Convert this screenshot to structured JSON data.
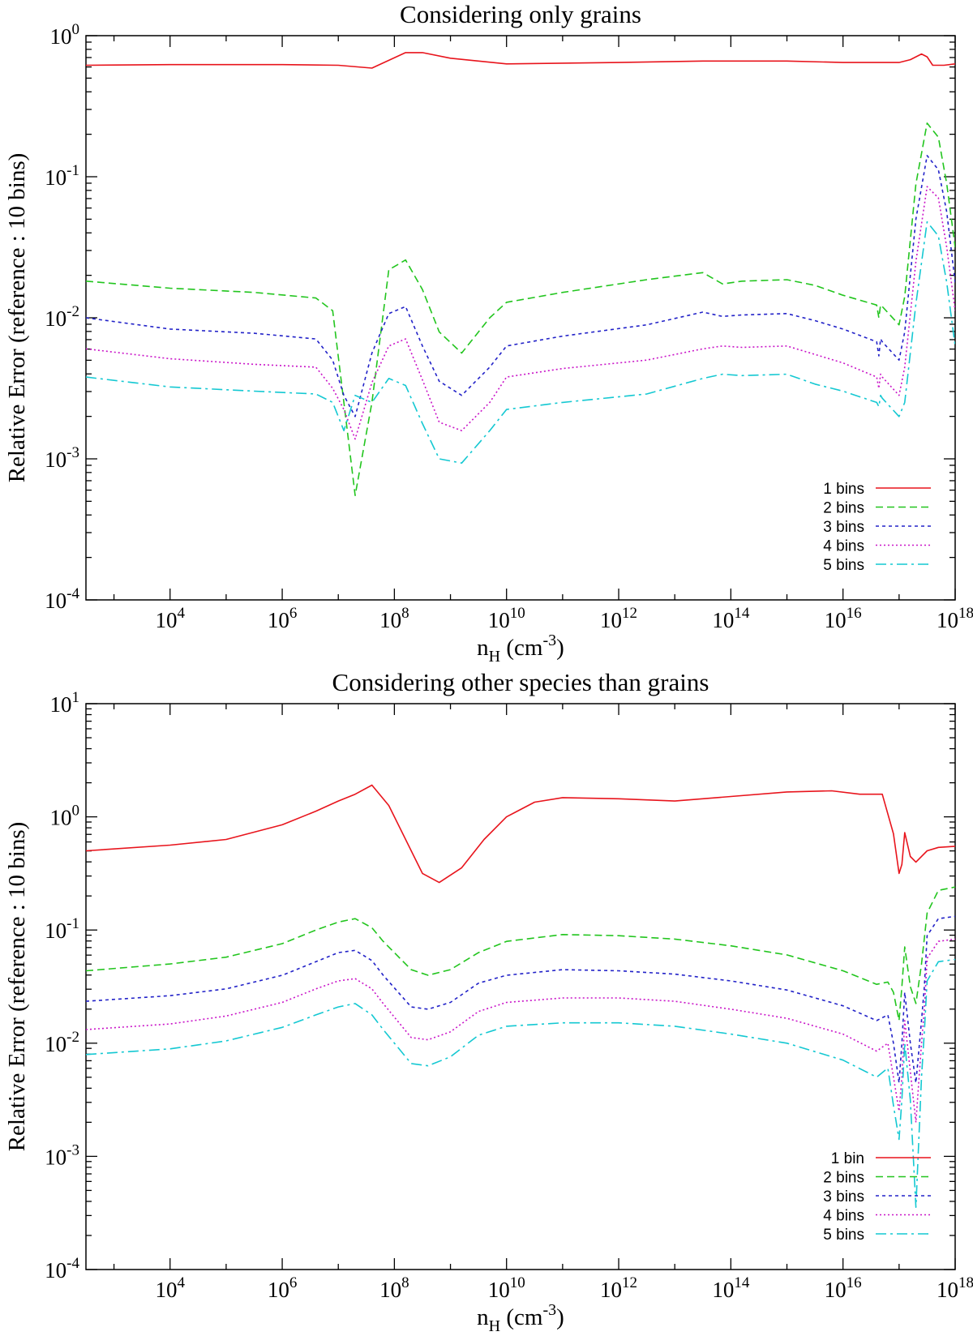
{
  "chart_data": [
    {
      "type": "line",
      "title": "Considering only grains",
      "xlabel": {
        "base": "n",
        "sub": "H",
        "unit_open": " (cm",
        "unit_exp": "-3",
        "unit_close": ")"
      },
      "ylabel": "Relative Error (reference : 10 bins)",
      "xscale": "log10",
      "yscale": "log10",
      "xlim": [
        2.5,
        18.0
      ],
      "ylim": [
        -4,
        0
      ],
      "x_ticks": [
        {
          "base": "10",
          "exp": "4",
          "value": 4
        },
        {
          "base": "10",
          "exp": "6",
          "value": 6
        },
        {
          "base": "10",
          "exp": "8",
          "value": 8
        },
        {
          "base": "10",
          "exp": "10",
          "value": 10
        },
        {
          "base": "10",
          "exp": "12",
          "value": 12
        },
        {
          "base": "10",
          "exp": "14",
          "value": 14
        },
        {
          "base": "10",
          "exp": "16",
          "value": 16
        },
        {
          "base": "10",
          "exp": "18",
          "value": 18
        }
      ],
      "y_ticks": [
        {
          "base": "10",
          "exp": "-4",
          "value": -4
        },
        {
          "base": "10",
          "exp": "-3",
          "value": -3
        },
        {
          "base": "10",
          "exp": "-2",
          "value": -2
        },
        {
          "base": "10",
          "exp": "-1",
          "value": -1
        },
        {
          "base": "10",
          "exp": "0",
          "value": 0
        }
      ],
      "legend_position": "bottom-right",
      "series": [
        {
          "name": "1 bins",
          "color": "#e8141c",
          "dash": "solid",
          "log_x": [
            2.5,
            4.0,
            6.0,
            7.0,
            7.6,
            8.2,
            8.5,
            9.0,
            10.0,
            12.0,
            13.5,
            15.0,
            16.0,
            17.0,
            17.2,
            17.4,
            17.5,
            17.6,
            17.8,
            18.0
          ],
          "log_y": [
            -0.21,
            -0.205,
            -0.205,
            -0.21,
            -0.23,
            -0.12,
            -0.12,
            -0.16,
            -0.2,
            -0.19,
            -0.18,
            -0.18,
            -0.19,
            -0.19,
            -0.17,
            -0.13,
            -0.15,
            -0.21,
            -0.21,
            -0.2
          ]
        },
        {
          "name": "2 bins",
          "color": "#22c51e",
          "dash": "dashed",
          "log_x": [
            2.5,
            4.0,
            5.5,
            6.6,
            6.9,
            7.1,
            7.3,
            7.6,
            7.9,
            8.2,
            8.5,
            8.8,
            9.2,
            9.7,
            10.0,
            11.0,
            12.5,
            13.5,
            13.85,
            14.2,
            15.0,
            15.5,
            16.0,
            16.6,
            16.64,
            16.67,
            16.7,
            17.0,
            17.1,
            17.3,
            17.5,
            17.7,
            17.85,
            18.0
          ],
          "log_y": [
            -1.74,
            -1.79,
            -1.82,
            -1.86,
            -1.95,
            -2.6,
            -3.26,
            -2.6,
            -1.66,
            -1.59,
            -1.8,
            -2.1,
            -2.25,
            -2.0,
            -1.89,
            -1.82,
            -1.73,
            -1.68,
            -1.76,
            -1.74,
            -1.73,
            -1.77,
            -1.84,
            -1.91,
            -2.0,
            -1.91,
            -1.92,
            -2.05,
            -1.85,
            -1.05,
            -0.62,
            -0.72,
            -1.05,
            -1.5
          ]
        },
        {
          "name": "3 bins",
          "color": "#2222c8",
          "dash": "dotted",
          "log_x": [
            2.5,
            4.0,
            5.5,
            6.6,
            6.9,
            7.1,
            7.3,
            7.6,
            7.9,
            8.2,
            8.5,
            8.8,
            9.2,
            9.7,
            10.0,
            11.0,
            12.5,
            13.5,
            13.85,
            14.2,
            15.0,
            15.5,
            16.0,
            16.6,
            16.64,
            16.67,
            16.7,
            17.0,
            17.1,
            17.3,
            17.5,
            17.7,
            17.85,
            18.0
          ],
          "log_y": [
            -2.0,
            -2.08,
            -2.11,
            -2.15,
            -2.3,
            -2.55,
            -2.7,
            -2.25,
            -1.97,
            -1.92,
            -2.2,
            -2.45,
            -2.55,
            -2.35,
            -2.2,
            -2.13,
            -2.05,
            -1.96,
            -1.99,
            -1.98,
            -1.97,
            -2.02,
            -2.08,
            -2.17,
            -2.27,
            -2.15,
            -2.17,
            -2.3,
            -2.1,
            -1.3,
            -0.85,
            -0.95,
            -1.25,
            -1.75
          ]
        },
        {
          "name": "4 bins",
          "color": "#c914c8",
          "dash": "finedot",
          "log_x": [
            2.5,
            4.0,
            5.5,
            6.6,
            6.9,
            7.1,
            7.3,
            7.6,
            7.9,
            8.2,
            8.5,
            8.8,
            9.2,
            9.7,
            10.0,
            11.0,
            12.5,
            13.5,
            13.85,
            14.2,
            15.0,
            15.5,
            16.0,
            16.6,
            16.64,
            16.67,
            16.7,
            17.0,
            17.1,
            17.3,
            17.5,
            17.7,
            17.85,
            18.0
          ],
          "log_y": [
            -2.22,
            -2.29,
            -2.33,
            -2.35,
            -2.5,
            -2.65,
            -2.86,
            -2.46,
            -2.2,
            -2.15,
            -2.44,
            -2.74,
            -2.8,
            -2.6,
            -2.42,
            -2.36,
            -2.3,
            -2.22,
            -2.2,
            -2.21,
            -2.2,
            -2.26,
            -2.32,
            -2.42,
            -2.5,
            -2.4,
            -2.42,
            -2.55,
            -2.35,
            -1.6,
            -1.07,
            -1.15,
            -1.5,
            -1.95
          ]
        },
        {
          "name": "5 bins",
          "color": "#14c8d2",
          "dash": "dashdot",
          "log_x": [
            2.5,
            4.0,
            5.5,
            6.6,
            6.9,
            7.1,
            7.3,
            7.6,
            7.9,
            8.2,
            8.5,
            8.8,
            9.2,
            9.7,
            10.0,
            11.0,
            12.5,
            13.5,
            13.85,
            14.2,
            15.0,
            15.5,
            16.0,
            16.6,
            16.64,
            16.67,
            16.7,
            17.0,
            17.1,
            17.3,
            17.5,
            17.7,
            17.85,
            18.0
          ],
          "log_y": [
            -2.42,
            -2.49,
            -2.52,
            -2.54,
            -2.6,
            -2.8,
            -2.55,
            -2.6,
            -2.43,
            -2.48,
            -2.75,
            -3.0,
            -3.03,
            -2.8,
            -2.65,
            -2.6,
            -2.54,
            -2.43,
            -2.4,
            -2.41,
            -2.4,
            -2.47,
            -2.52,
            -2.6,
            -2.63,
            -2.55,
            -2.57,
            -2.7,
            -2.6,
            -1.9,
            -1.32,
            -1.42,
            -1.75,
            -2.2
          ]
        }
      ]
    },
    {
      "type": "line",
      "title": "Considering other species than grains",
      "xlabel": {
        "base": "n",
        "sub": "H",
        "unit_open": " (cm",
        "unit_exp": "-3",
        "unit_close": ")"
      },
      "ylabel": "Relative Error (reference : 10 bins)",
      "xscale": "log10",
      "yscale": "log10",
      "xlim": [
        2.5,
        18.0
      ],
      "ylim": [
        -4,
        1
      ],
      "x_ticks": [
        {
          "base": "10",
          "exp": "4",
          "value": 4
        },
        {
          "base": "10",
          "exp": "6",
          "value": 6
        },
        {
          "base": "10",
          "exp": "8",
          "value": 8
        },
        {
          "base": "10",
          "exp": "10",
          "value": 10
        },
        {
          "base": "10",
          "exp": "12",
          "value": 12
        },
        {
          "base": "10",
          "exp": "14",
          "value": 14
        },
        {
          "base": "10",
          "exp": "16",
          "value": 16
        },
        {
          "base": "10",
          "exp": "18",
          "value": 18
        }
      ],
      "y_ticks": [
        {
          "base": "10",
          "exp": "-4",
          "value": -4
        },
        {
          "base": "10",
          "exp": "-3",
          "value": -3
        },
        {
          "base": "10",
          "exp": "-2",
          "value": -2
        },
        {
          "base": "10",
          "exp": "-1",
          "value": -1
        },
        {
          "base": "10",
          "exp": "0",
          "value": 0
        },
        {
          "base": "10",
          "exp": "1",
          "value": 1
        }
      ],
      "legend_position": "bottom-right",
      "series": [
        {
          "name": "1 bin",
          "color": "#e8141c",
          "dash": "solid",
          "log_x": [
            2.5,
            4.0,
            5.0,
            6.0,
            6.6,
            7.0,
            7.3,
            7.6,
            7.9,
            8.5,
            8.8,
            9.2,
            9.6,
            10.0,
            10.5,
            11.0,
            12.0,
            13.0,
            14.0,
            15.0,
            15.8,
            16.3,
            16.7,
            16.9,
            17.0,
            17.05,
            17.1,
            17.2,
            17.3,
            17.5,
            17.7,
            18.0
          ],
          "log_y": [
            -0.3,
            -0.25,
            -0.2,
            -0.07,
            0.05,
            0.14,
            0.2,
            0.28,
            0.1,
            -0.5,
            -0.58,
            -0.45,
            -0.2,
            0.0,
            0.13,
            0.17,
            0.16,
            0.14,
            0.18,
            0.22,
            0.23,
            0.2,
            0.2,
            -0.15,
            -0.5,
            -0.42,
            -0.14,
            -0.35,
            -0.4,
            -0.3,
            -0.27,
            -0.26
          ]
        },
        {
          "name": "2 bins",
          "color": "#22c51e",
          "dash": "dashed",
          "log_x": [
            2.5,
            4.0,
            5.0,
            6.0,
            6.6,
            7.0,
            7.3,
            7.6,
            7.8,
            8.3,
            8.6,
            9.0,
            9.5,
            10.0,
            11.0,
            12.0,
            13.0,
            14.0,
            15.0,
            16.0,
            16.6,
            16.8,
            16.9,
            17.0,
            17.05,
            17.1,
            17.2,
            17.3,
            17.4,
            17.5,
            17.7,
            18.0
          ],
          "log_y": [
            -1.36,
            -1.3,
            -1.24,
            -1.12,
            -1.0,
            -0.93,
            -0.9,
            -0.98,
            -1.1,
            -1.35,
            -1.4,
            -1.35,
            -1.2,
            -1.1,
            -1.04,
            -1.05,
            -1.08,
            -1.14,
            -1.22,
            -1.36,
            -1.48,
            -1.46,
            -1.55,
            -1.8,
            -1.5,
            -1.15,
            -1.5,
            -1.65,
            -1.3,
            -0.85,
            -0.65,
            -0.62
          ]
        },
        {
          "name": "3 bins",
          "color": "#2222c8",
          "dash": "dotted",
          "log_x": [
            2.5,
            4.0,
            5.0,
            6.0,
            6.6,
            7.0,
            7.3,
            7.6,
            7.8,
            8.3,
            8.6,
            9.0,
            9.5,
            10.0,
            11.0,
            12.0,
            13.0,
            14.0,
            15.0,
            16.0,
            16.6,
            16.8,
            16.9,
            17.0,
            17.05,
            17.1,
            17.2,
            17.3,
            17.4,
            17.45,
            17.5,
            17.7,
            18.0
          ],
          "log_y": [
            -1.63,
            -1.58,
            -1.52,
            -1.4,
            -1.28,
            -1.2,
            -1.18,
            -1.27,
            -1.4,
            -1.68,
            -1.7,
            -1.64,
            -1.47,
            -1.4,
            -1.35,
            -1.36,
            -1.39,
            -1.45,
            -1.53,
            -1.67,
            -1.8,
            -1.75,
            -2.0,
            -2.35,
            -2.0,
            -1.55,
            -2.0,
            -2.35,
            -1.8,
            -1.5,
            -1.05,
            -0.9,
            -0.88
          ]
        },
        {
          "name": "4 bins",
          "color": "#c914c8",
          "dash": "finedot",
          "log_x": [
            2.5,
            4.0,
            5.0,
            6.0,
            6.6,
            7.0,
            7.3,
            7.6,
            7.8,
            8.3,
            8.6,
            9.0,
            9.5,
            10.0,
            11.0,
            12.0,
            13.0,
            14.0,
            15.0,
            16.0,
            16.6,
            16.8,
            16.9,
            17.0,
            17.05,
            17.1,
            17.2,
            17.3,
            17.4,
            17.45,
            17.5,
            17.7,
            18.0
          ],
          "log_y": [
            -1.88,
            -1.83,
            -1.76,
            -1.64,
            -1.52,
            -1.45,
            -1.43,
            -1.52,
            -1.65,
            -1.95,
            -1.97,
            -1.9,
            -1.72,
            -1.64,
            -1.6,
            -1.6,
            -1.63,
            -1.7,
            -1.78,
            -1.92,
            -2.07,
            -2.0,
            -2.3,
            -2.6,
            -2.3,
            -1.8,
            -2.25,
            -2.7,
            -2.0,
            -1.7,
            -1.25,
            -1.1,
            -1.08
          ]
        },
        {
          "name": "5 bins",
          "color": "#14c8d2",
          "dash": "dashdot",
          "log_x": [
            2.5,
            4.0,
            5.0,
            6.0,
            6.6,
            7.0,
            7.3,
            7.6,
            7.8,
            8.3,
            8.6,
            9.0,
            9.5,
            10.0,
            11.0,
            12.0,
            13.0,
            14.0,
            15.0,
            16.0,
            16.6,
            16.8,
            16.9,
            17.0,
            17.05,
            17.1,
            17.2,
            17.3,
            17.4,
            17.45,
            17.5,
            17.7,
            18.0
          ],
          "log_y": [
            -2.1,
            -2.05,
            -1.98,
            -1.86,
            -1.75,
            -1.68,
            -1.65,
            -1.75,
            -1.88,
            -2.18,
            -2.2,
            -2.12,
            -1.93,
            -1.85,
            -1.82,
            -1.82,
            -1.85,
            -1.92,
            -2.0,
            -2.15,
            -2.3,
            -2.22,
            -2.55,
            -2.85,
            -2.5,
            -2.0,
            -2.5,
            -3.45,
            -2.3,
            -1.9,
            -1.45,
            -1.28,
            -1.26
          ]
        }
      ]
    }
  ]
}
